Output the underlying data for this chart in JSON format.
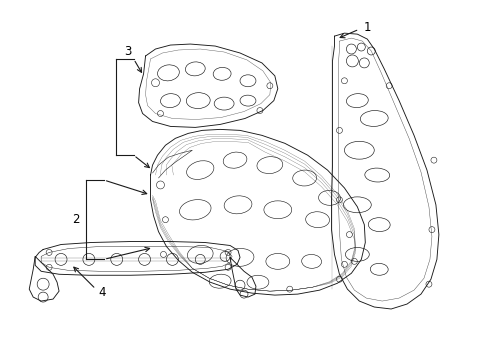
{
  "background_color": "#ffffff",
  "line_color": "#1a1a1a",
  "label_color": "#000000",
  "figsize": [
    4.89,
    3.6
  ],
  "dpi": 100,
  "lw": 0.65,
  "label_fontsize": 8.5
}
